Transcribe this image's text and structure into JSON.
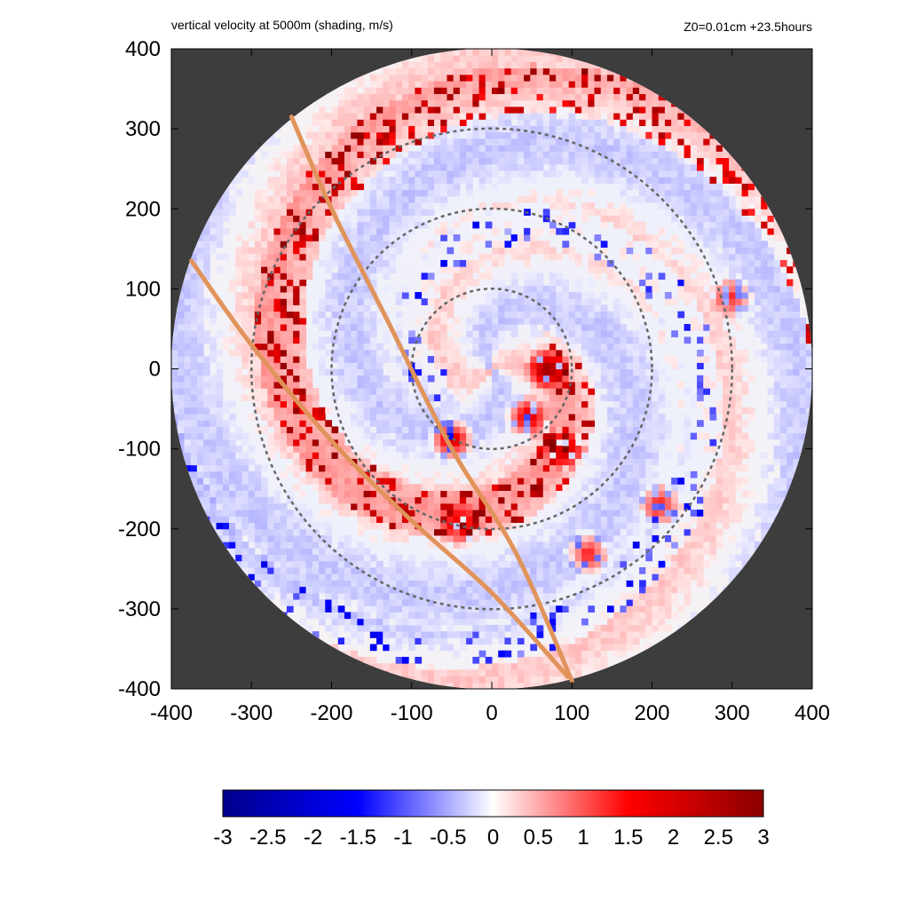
{
  "titles": {
    "left": "vertical velocity at 5000m (shading, m/s)",
    "right": "Z0=0.01cm  +23.5hours"
  },
  "chart_data": {
    "type": "heatmap",
    "title": "vertical velocity at 5000m (shading, m/s)",
    "subtitle": "Z0=0.01cm  +23.5hours",
    "xlabel": "",
    "ylabel": "",
    "xlim": [
      -400,
      400
    ],
    "ylim": [
      -400,
      400
    ],
    "x_ticks": [
      -400,
      -300,
      -200,
      -100,
      0,
      100,
      200,
      300,
      400
    ],
    "y_ticks": [
      400,
      300,
      200,
      100,
      0,
      -100,
      -200,
      -300,
      -400
    ],
    "domain_radius": 400,
    "range_rings": [
      100,
      200,
      300
    ],
    "colorbar": {
      "min": -3,
      "max": 3,
      "ticks": [
        "-3",
        "-2.5",
        "-2",
        "-1.5",
        "-1",
        "-0.5",
        "0",
        "0.5",
        "1",
        "1.5",
        "2",
        "2.5",
        "3"
      ],
      "colors": [
        "#00008b",
        "#0000ff",
        "#ffffff",
        "#ff0000",
        "#8b0000"
      ]
    },
    "track_lines": [
      {
        "points": [
          [
            -250,
            315
          ],
          [
            -200,
            200
          ],
          [
            -130,
            60
          ],
          [
            -50,
            -100
          ],
          [
            30,
            -230
          ],
          [
            100,
            -390
          ]
        ]
      },
      {
        "points": [
          [
            -375,
            135
          ],
          [
            -300,
            30
          ],
          [
            -200,
            -90
          ],
          [
            -100,
            -190
          ],
          [
            0,
            -280
          ],
          [
            95,
            -385
          ]
        ]
      }
    ],
    "features": {
      "strong_updraft_clusters": [
        {
          "x": 70,
          "y": 0,
          "w": 3.0
        },
        {
          "x": -50,
          "y": -88,
          "w": 2.8
        },
        {
          "x": 45,
          "y": -60,
          "w": 2.2
        },
        {
          "x": 90,
          "y": -100,
          "w": 2.0
        },
        {
          "x": -40,
          "y": -195,
          "w": 1.8
        },
        {
          "x": 120,
          "y": -230,
          "w": 2.0
        },
        {
          "x": 210,
          "y": -170,
          "w": 1.8
        },
        {
          "x": 300,
          "y": 90,
          "w": 1.6
        }
      ]
    },
    "colors": {
      "background": "#3d3d3d",
      "track": "#e0935a",
      "ring": "#666666"
    }
  }
}
